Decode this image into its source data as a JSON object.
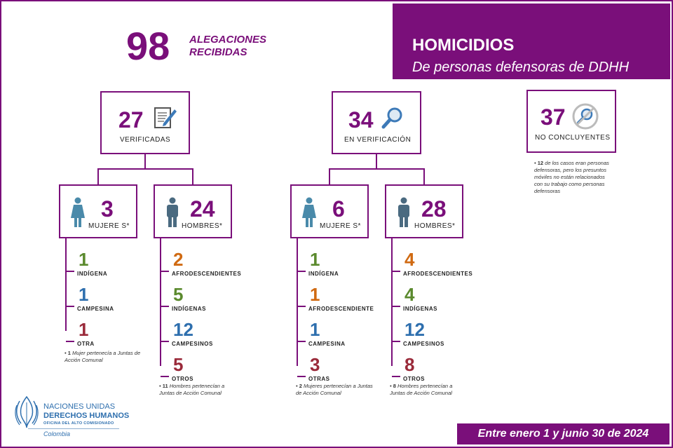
{
  "header": {
    "total": "98",
    "total_label_1": "ALEGACIONES",
    "total_label_2": "RECIBIDAS",
    "title": "HOMICIDIOS",
    "subtitle": "De personas defensoras de DDHH"
  },
  "verified": {
    "num": "27",
    "label": "VERIFICADAS",
    "women": {
      "num": "3",
      "label": "MUJERE S*",
      "items": [
        {
          "n": "1",
          "l": "INDÍGENA",
          "color": "#5b8a2e"
        },
        {
          "n": "1",
          "l": "CAMPESINA",
          "color": "#2e6fae"
        },
        {
          "n": "1",
          "l": "OTRA",
          "color": "#9a2a3a"
        }
      ],
      "note_num": "1",
      "note_text": "Mujer pertenecía a Juntas de Acción Comunal"
    },
    "men": {
      "num": "24",
      "label": "HOMBRES*",
      "items": [
        {
          "n": "2",
          "l": "AFRODESCENDIENTES",
          "color": "#d06a12"
        },
        {
          "n": "5",
          "l": "INDÍGENAS",
          "color": "#5b8a2e"
        },
        {
          "n": "12",
          "l": "CAMPESINOS",
          "color": "#2e6fae"
        },
        {
          "n": "5",
          "l": "OTROS",
          "color": "#9a2a3a"
        }
      ],
      "note_num": "11",
      "note_text": "Hombres pertenecían a Juntas de Acción Comunal"
    }
  },
  "in_verification": {
    "num": "34",
    "label": "EN VERIFICACIÓN",
    "women": {
      "num": "6",
      "label": "MUJERE S*",
      "items": [
        {
          "n": "1",
          "l": "INDÍGENA",
          "color": "#5b8a2e"
        },
        {
          "n": "1",
          "l": "AFRODESCENDIENTE",
          "color": "#d06a12"
        },
        {
          "n": "1",
          "l": "CAMPESINA",
          "color": "#2e6fae"
        },
        {
          "n": "3",
          "l": "OTRAS",
          "color": "#9a2a3a"
        }
      ],
      "note_num": "2",
      "note_text": "Mujeres pertenecían a Juntas de Acción Comunal"
    },
    "men": {
      "num": "28",
      "label": "HOMBRES*",
      "items": [
        {
          "n": "4",
          "l": "AFRODESCENDIENTES",
          "color": "#d06a12"
        },
        {
          "n": "4",
          "l": "INDÍGENAS",
          "color": "#5b8a2e"
        },
        {
          "n": "12",
          "l": "CAMPESINOS",
          "color": "#2e6fae"
        },
        {
          "n": "8",
          "l": "OTROS",
          "color": "#9a2a3a"
        }
      ],
      "note_num": "8",
      "note_text": "Hombres pertenecían a Juntas de Acción Comunal"
    }
  },
  "inconclusive": {
    "num": "37",
    "label": "NO CONCLUYENTES",
    "note_num": "12",
    "note_text": "de los casos eran personas defensoras, pero los presuntos móviles no están relacionados con su trabajo como personas defensoras"
  },
  "logo": {
    "line1": "NACIONES UNIDAS",
    "line2": "DERECHOS HUMANOS",
    "line3": "OFICINA DEL ALTO COMISIONADO",
    "country": "Colombia"
  },
  "footer": "Entre enero 1 y junio 30 de 2024"
}
